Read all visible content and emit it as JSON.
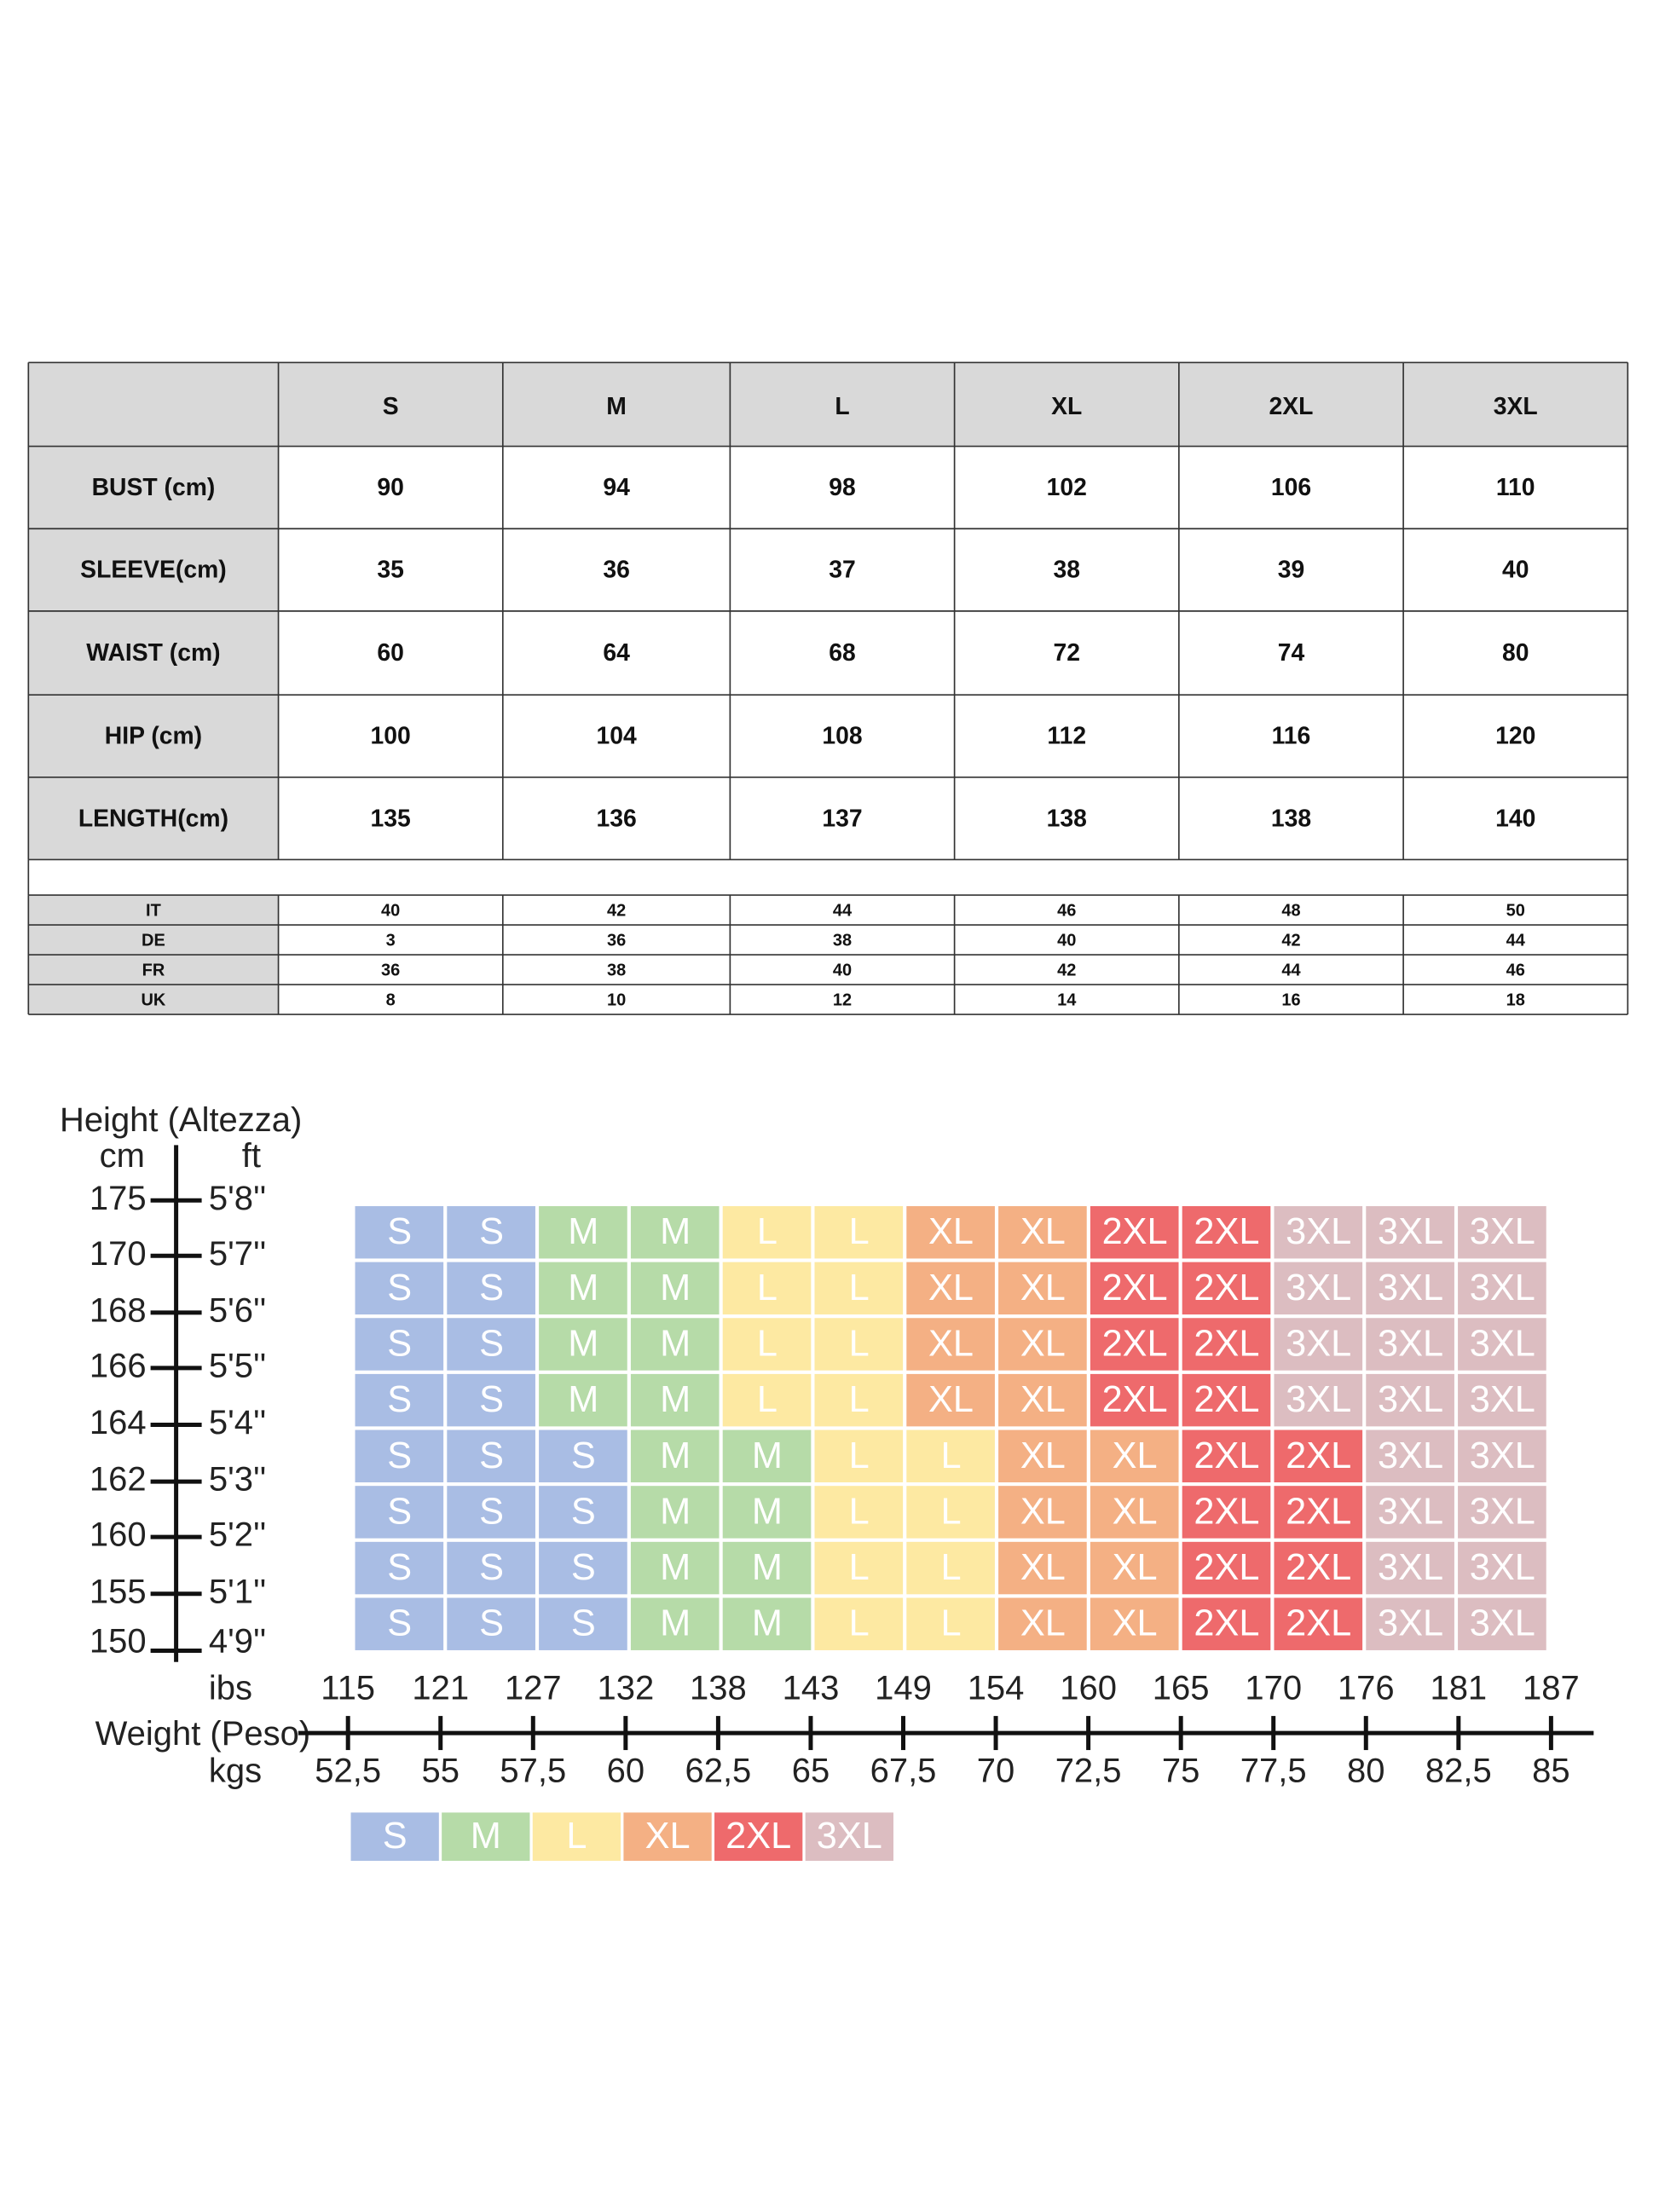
{
  "table": {
    "header": [
      "S",
      "M",
      "L",
      "XL",
      "2XL",
      "3XL"
    ],
    "rows": [
      {
        "label": "BUST (cm)",
        "values": [
          90,
          94,
          98,
          102,
          106,
          110
        ]
      },
      {
        "label": "SLEEVE(cm)",
        "values": [
          35,
          36,
          37,
          38,
          39,
          40
        ]
      },
      {
        "label": "WAIST (cm)",
        "values": [
          60,
          64,
          68,
          72,
          74,
          80
        ]
      },
      {
        "label": "HIP (cm)",
        "values": [
          100,
          104,
          108,
          112,
          116,
          120
        ]
      },
      {
        "label": "LENGTH(cm)",
        "values": [
          135,
          136,
          137,
          138,
          138,
          140
        ]
      }
    ],
    "conversion": [
      {
        "label": "IT",
        "values": [
          40,
          42,
          44,
          46,
          48,
          50
        ]
      },
      {
        "label": "DE",
        "values": [
          3,
          36,
          38,
          40,
          42,
          44
        ]
      },
      {
        "label": "FR",
        "values": [
          36,
          38,
          40,
          42,
          44,
          46
        ]
      },
      {
        "label": "UK",
        "values": [
          8,
          10,
          12,
          14,
          16,
          18
        ]
      }
    ]
  },
  "size_grid": {
    "height_axis": {
      "title": "Height (Altezza)",
      "cm_label": "cm",
      "ft_label": "ft",
      "cm": [
        175,
        170,
        168,
        166,
        164,
        162,
        160,
        155,
        150
      ],
      "ft": [
        "5'8''",
        "5'7''",
        "5'6''",
        "5'5''",
        "5'4''",
        "5'3''",
        "5'2''",
        "5'1''",
        "4'9''"
      ]
    },
    "weight_axis": {
      "title": "Weight (Peso)",
      "lbs_label": "ibs",
      "kgs_label": "kgs",
      "lbs": [
        115,
        121,
        127,
        132,
        138,
        143,
        149,
        154,
        160,
        165,
        170,
        176,
        181,
        187
      ],
      "kgs": [
        "52,5",
        "55",
        "57,5",
        "60",
        "62,5",
        "65",
        "67,5",
        "70",
        "72,5",
        "75",
        "77,5",
        "80",
        "82,5",
        "85"
      ]
    },
    "rows": [
      [
        "S",
        "S",
        "M",
        "M",
        "L",
        "L",
        "XL",
        "XL",
        "2XL",
        "2XL",
        "3XL",
        "3XL",
        "3XL"
      ],
      [
        "S",
        "S",
        "M",
        "M",
        "L",
        "L",
        "XL",
        "XL",
        "2XL",
        "2XL",
        "3XL",
        "3XL",
        "3XL"
      ],
      [
        "S",
        "S",
        "M",
        "M",
        "L",
        "L",
        "XL",
        "XL",
        "2XL",
        "2XL",
        "3XL",
        "3XL",
        "3XL"
      ],
      [
        "S",
        "S",
        "M",
        "M",
        "L",
        "L",
        "XL",
        "XL",
        "2XL",
        "2XL",
        "3XL",
        "3XL",
        "3XL"
      ],
      [
        "S",
        "S",
        "S",
        "M",
        "M",
        "L",
        "L",
        "XL",
        "XL",
        "2XL",
        "2XL",
        "3XL",
        "3XL"
      ],
      [
        "S",
        "S",
        "S",
        "M",
        "M",
        "L",
        "L",
        "XL",
        "XL",
        "2XL",
        "2XL",
        "3XL",
        "3XL"
      ],
      [
        "S",
        "S",
        "S",
        "M",
        "M",
        "L",
        "L",
        "XL",
        "XL",
        "2XL",
        "2XL",
        "3XL",
        "3XL"
      ],
      [
        "S",
        "S",
        "S",
        "M",
        "M",
        "L",
        "L",
        "XL",
        "XL",
        "2XL",
        "2XL",
        "3XL",
        "3XL"
      ]
    ],
    "legend": [
      {
        "label": "S",
        "color": "#a9bde4"
      },
      {
        "label": "M",
        "color": "#b6dba8"
      },
      {
        "label": "L",
        "color": "#fde9a2"
      },
      {
        "label": "XL",
        "color": "#f4b084"
      },
      {
        "label": "2XL",
        "color": "#ee6a6c"
      },
      {
        "label": "3XL",
        "color": "#dcbdc1"
      }
    ]
  }
}
